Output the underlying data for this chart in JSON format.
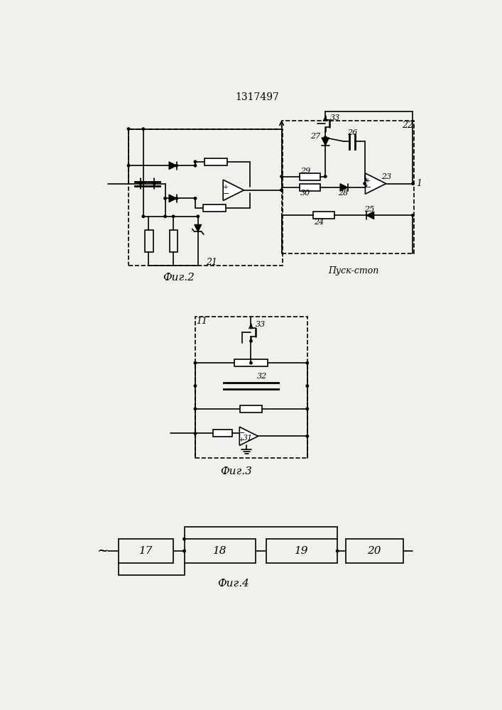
{
  "title": "1317497",
  "fig2_label": "Фиг.2",
  "fig3_label": "Фиг.3",
  "fig4_label": "Фиг.4",
  "pusk_stop": "Пуск-стоп",
  "bg_color": "#f0f0ec",
  "line_color": "#000000",
  "box_color": "#ffffff",
  "font_size": 9,
  "label_font_size": 8
}
